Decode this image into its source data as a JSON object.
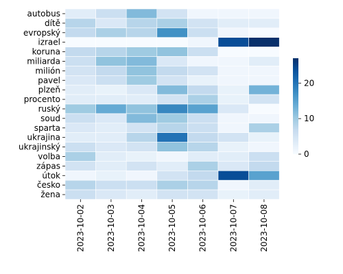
{
  "chart_data": {
    "type": "heatmap",
    "title": "",
    "xlabel": "",
    "ylabel": "",
    "x": [
      "2023-10-02",
      "2023-10-03",
      "2023-10-04",
      "2023-10-05",
      "2023-10-06",
      "2023-10-07",
      "2023-10-08"
    ],
    "y": [
      "autobus",
      "dítě",
      "evropský",
      "izrael",
      "koruna",
      "miliarda",
      "milión",
      "pavel",
      "plzeň",
      "procento",
      "ruský",
      "soud",
      "sparta",
      "ukrajina",
      "ukrajinský",
      "volba",
      "zápas",
      "útok",
      "česko",
      "žena"
    ],
    "values": [
      [
        3,
        6,
        12,
        5,
        1,
        1,
        1
      ],
      [
        8,
        4,
        8,
        9,
        5,
        3,
        3
      ],
      [
        7,
        9,
        8,
        17,
        6,
        1,
        0
      ],
      [
        0,
        0,
        0,
        0,
        1,
        24,
        27
      ],
      [
        7,
        8,
        10,
        11,
        6,
        0,
        0
      ],
      [
        6,
        11,
        12,
        4,
        1,
        1,
        3
      ],
      [
        5,
        7,
        11,
        7,
        5,
        1,
        1
      ],
      [
        4,
        6,
        10,
        5,
        2,
        1,
        1
      ],
      [
        3,
        2,
        4,
        12,
        7,
        2,
        13
      ],
      [
        3,
        3,
        3,
        5,
        9,
        2,
        5
      ],
      [
        10,
        14,
        11,
        18,
        15,
        4,
        0
      ],
      [
        6,
        4,
        12,
        10,
        6,
        1,
        1
      ],
      [
        4,
        3,
        5,
        8,
        6,
        1,
        9
      ],
      [
        3,
        3,
        8,
        20,
        7,
        5,
        2
      ],
      [
        6,
        4,
        5,
        11,
        8,
        2,
        1
      ],
      [
        9,
        3,
        2,
        1,
        3,
        3,
        6
      ],
      [
        5,
        3,
        5,
        3,
        9,
        4,
        7
      ],
      [
        1,
        2,
        1,
        5,
        7,
        24,
        15
      ],
      [
        8,
        6,
        6,
        9,
        8,
        1,
        3
      ],
      [
        6,
        4,
        3,
        5,
        5,
        2,
        3
      ]
    ],
    "vmin": 0,
    "vmax": 27,
    "colormap": "Blues",
    "colorbar_ticks": [
      0,
      10,
      20
    ],
    "grid": false
  }
}
